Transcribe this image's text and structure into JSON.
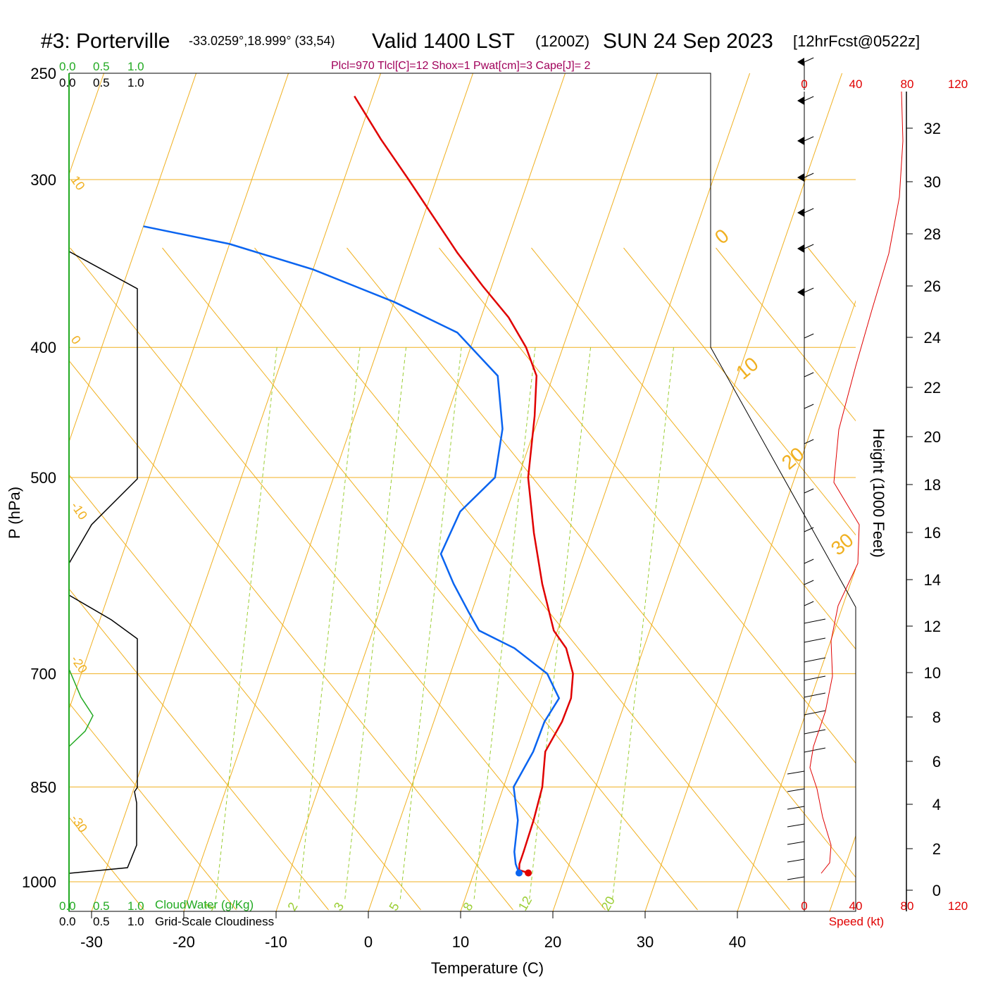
{
  "header": {
    "station": "#3: Porterville",
    "coords": "-33.0259°,18.999° (33,54)",
    "valid": "Valid 1400 LST",
    "utc": "(1200Z)",
    "date": "SUN 24 Sep 2023",
    "forecast": "[12hrFcst@0522z]"
  },
  "params_line": "Plcl=970 Tlcl[C]=12 Shox=1 Pwat[cm]=3 Cape[J]= 2",
  "colors": {
    "temperature": "#e00000",
    "dewpoint": "#0a64f0",
    "isotherm": "#f0b020",
    "adiabat": "#9acd32",
    "cloudwater": "#22aa22",
    "cloudiness": "#000000",
    "speed": "#e00000"
  },
  "chart_data": {
    "type": "line",
    "xlabel": "Temperature (C)",
    "ylabel": "P (hPa)",
    "y2label": "Height (1000 Feet)",
    "x_ticks": [
      "-30",
      "-20",
      "-10",
      "0",
      "10",
      "20",
      "30",
      "40"
    ],
    "pressure_ticks": [
      {
        "p": 250,
        "label": "250"
      },
      {
        "p": 300,
        "label": "300"
      },
      {
        "p": 400,
        "label": "400"
      },
      {
        "p": 500,
        "label": "500"
      },
      {
        "p": 700,
        "label": "700"
      },
      {
        "p": 850,
        "label": "850"
      },
      {
        "p": 1000,
        "label": "1000"
      }
    ],
    "height_ticks": [
      "0",
      "2",
      "4",
      "6",
      "8",
      "10",
      "12",
      "14",
      "16",
      "18",
      "20",
      "22",
      "24",
      "26",
      "28",
      "30",
      "32"
    ],
    "speed_ticks": [
      "0",
      "40",
      "80",
      "120"
    ],
    "speed_label": "Speed (kt)",
    "cloud_top_labels": {
      "green": [
        "0.0",
        "0.5",
        "1.0"
      ],
      "black": [
        "0.0",
        "0.5",
        "1.0"
      ]
    },
    "cloud_bottom_labels": {
      "green": [
        "0.0",
        "0.5",
        "1.0"
      ],
      "black": [
        "0.0",
        "0.5",
        "1.0"
      ]
    },
    "cloudwater_label": "CloudWater (g/Kg)",
    "cloudiness_label": "Grid-Scale Cloudiness",
    "isotherm_labels": [
      "10",
      "0",
      "-10",
      "-20",
      "-30"
    ],
    "isotherm_labels_right": [
      "0",
      "10",
      "20",
      "30"
    ],
    "mixing_ratio_labels": [
      "1",
      "2",
      "3",
      "5",
      "8",
      "12",
      "20"
    ],
    "series": [
      {
        "name": "Temperature",
        "points": [
          {
            "p": 985,
            "t": 15.9
          },
          {
            "p": 980,
            "t": 14.8
          },
          {
            "p": 970,
            "t": 14.6
          },
          {
            "p": 950,
            "t": 14.6
          },
          {
            "p": 900,
            "t": 14.5
          },
          {
            "p": 850,
            "t": 14.2
          },
          {
            "p": 800,
            "t": 13.2
          },
          {
            "p": 760,
            "t": 13.9
          },
          {
            "p": 730,
            "t": 14.0
          },
          {
            "p": 700,
            "t": 13.3
          },
          {
            "p": 670,
            "t": 11.6
          },
          {
            "p": 650,
            "t": 9.6
          },
          {
            "p": 600,
            "t": 6.6
          },
          {
            "p": 550,
            "t": 3.8
          },
          {
            "p": 500,
            "t": 1.1
          },
          {
            "p": 450,
            "t": -0.5
          },
          {
            "p": 420,
            "t": -1.8
          },
          {
            "p": 400,
            "t": -4.0
          },
          {
            "p": 380,
            "t": -7.0
          },
          {
            "p": 360,
            "t": -11.0
          },
          {
            "p": 340,
            "t": -15.0
          },
          {
            "p": 300,
            "t": -23.0
          },
          {
            "p": 280,
            "t": -27.5
          },
          {
            "p": 260,
            "t": -32.0
          }
        ]
      },
      {
        "name": "Dewpoint",
        "points": [
          {
            "p": 985,
            "t": 14.9
          },
          {
            "p": 970,
            "t": 14.2
          },
          {
            "p": 950,
            "t": 13.6
          },
          {
            "p": 900,
            "t": 12.8
          },
          {
            "p": 850,
            "t": 11.1
          },
          {
            "p": 800,
            "t": 11.9
          },
          {
            "p": 760,
            "t": 12.0
          },
          {
            "p": 730,
            "t": 12.7
          },
          {
            "p": 700,
            "t": 10.5
          },
          {
            "p": 670,
            "t": 6.0
          },
          {
            "p": 650,
            "t": 1.5
          },
          {
            "p": 630,
            "t": -0.3
          },
          {
            "p": 600,
            "t": -3.0
          },
          {
            "p": 570,
            "t": -5.5
          },
          {
            "p": 530,
            "t": -5.0
          },
          {
            "p": 500,
            "t": -2.5
          },
          {
            "p": 460,
            "t": -3.5
          },
          {
            "p": 420,
            "t": -6.0
          },
          {
            "p": 390,
            "t": -12.0
          },
          {
            "p": 370,
            "t": -20.0
          },
          {
            "p": 350,
            "t": -30.0
          },
          {
            "p": 335,
            "t": -40.0
          },
          {
            "p": 325,
            "t": -50.0
          }
        ]
      }
    ]
  }
}
